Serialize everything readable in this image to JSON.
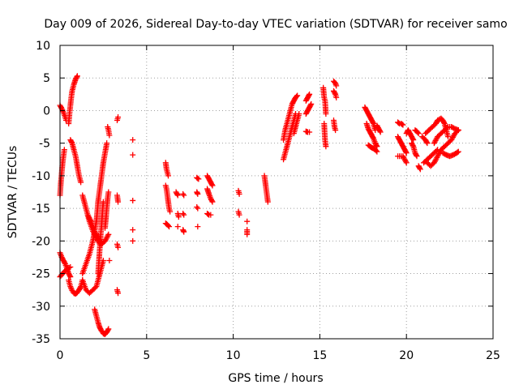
{
  "chart_data": {
    "type": "scatter",
    "title": "Day 009 of 2026, Sidereal Day-to-day VTEC variation (SDTVAR) for receiver samo",
    "xlabel": "GPS time / hours",
    "ylabel": "SDTVAR / TECUs",
    "xlim": [
      0,
      25
    ],
    "ylim": [
      -35,
      10
    ],
    "xticks": [
      0,
      5,
      10,
      15,
      20,
      25
    ],
    "yticks": [
      10,
      5,
      0,
      -5,
      -10,
      -15,
      -20,
      -25,
      -30,
      -35
    ],
    "grid": true,
    "marker": "+",
    "color": "#ff0000",
    "traces": [
      [
        [
          0.0,
          -13.0
        ],
        [
          0.05,
          -11.0
        ],
        [
          0.1,
          -9.5
        ],
        [
          0.15,
          -8.0
        ],
        [
          0.2,
          -7.0
        ],
        [
          0.25,
          -6.0
        ]
      ],
      [
        [
          0.0,
          0.8
        ],
        [
          0.1,
          0.3
        ],
        [
          0.2,
          -0.3
        ],
        [
          0.3,
          -1.0
        ],
        [
          0.35,
          -1.5
        ]
      ],
      [
        [
          0.5,
          -2.0
        ],
        [
          0.55,
          -0.5
        ],
        [
          0.6,
          0.8
        ],
        [
          0.65,
          2.0
        ],
        [
          0.7,
          3.0
        ],
        [
          0.8,
          4.0
        ],
        [
          0.9,
          4.8
        ],
        [
          1.0,
          5.3
        ]
      ],
      [
        [
          0.0,
          -21.8
        ],
        [
          0.1,
          -22.5
        ],
        [
          0.2,
          -23.0
        ],
        [
          0.3,
          -23.5
        ],
        [
          0.4,
          -24.2
        ],
        [
          0.5,
          -25.0
        ],
        [
          0.6,
          -25.5
        ]
      ],
      [
        [
          0.0,
          -25.5
        ],
        [
          0.15,
          -25.0
        ],
        [
          0.3,
          -24.6
        ],
        [
          0.45,
          -24.2
        ],
        [
          0.6,
          -24.0
        ]
      ],
      [
        [
          0.5,
          -26.0
        ],
        [
          0.6,
          -27.0
        ],
        [
          0.7,
          -27.6
        ],
        [
          0.8,
          -28.0
        ],
        [
          0.9,
          -28.1
        ],
        [
          1.0,
          -27.9
        ],
        [
          1.1,
          -27.5
        ],
        [
          1.2,
          -27.0
        ],
        [
          1.3,
          -26.0
        ]
      ],
      [
        [
          0.6,
          -4.5
        ],
        [
          0.7,
          -5.0
        ],
        [
          0.8,
          -6.0
        ],
        [
          0.9,
          -7.0
        ],
        [
          1.0,
          -8.5
        ],
        [
          1.1,
          -10.0
        ],
        [
          1.2,
          -11.0
        ]
      ],
      [
        [
          1.3,
          -26.0
        ],
        [
          1.5,
          -27.5
        ],
        [
          1.7,
          -28.0
        ],
        [
          1.9,
          -27.5
        ],
        [
          2.1,
          -27.0
        ],
        [
          2.2,
          -26.0
        ],
        [
          2.3,
          -25.0
        ],
        [
          2.4,
          -24.0
        ],
        [
          2.5,
          -23.0
        ]
      ],
      [
        [
          1.3,
          -25.0
        ],
        [
          1.5,
          -23.5
        ],
        [
          1.7,
          -22.0
        ],
        [
          1.9,
          -20.0
        ],
        [
          2.1,
          -17.0
        ],
        [
          2.2,
          -14.0
        ],
        [
          2.3,
          -12.0
        ],
        [
          2.4,
          -10.0
        ],
        [
          2.5,
          -8.0
        ],
        [
          2.6,
          -6.5
        ],
        [
          2.7,
          -5.0
        ]
      ],
      [
        [
          1.3,
          -13.0
        ],
        [
          1.5,
          -15.0
        ],
        [
          1.7,
          -17.0
        ],
        [
          1.9,
          -18.5
        ],
        [
          2.1,
          -19.5
        ],
        [
          2.3,
          -20.5
        ]
      ],
      [
        [
          1.6,
          -16.0
        ],
        [
          1.8,
          -17.0
        ],
        [
          2.0,
          -18.5
        ],
        [
          2.2,
          -19.5
        ],
        [
          2.4,
          -20.5
        ],
        [
          2.6,
          -20.0
        ],
        [
          2.8,
          -19.0
        ]
      ],
      [
        [
          2.0,
          -30.5
        ],
        [
          2.1,
          -31.5
        ],
        [
          2.2,
          -32.5
        ],
        [
          2.3,
          -33.3
        ],
        [
          2.4,
          -33.8
        ],
        [
          2.5,
          -34.2
        ],
        [
          2.6,
          -34.3
        ],
        [
          2.7,
          -34.0
        ],
        [
          2.8,
          -33.5
        ]
      ],
      [
        [
          2.2,
          -25.0
        ],
        [
          2.25,
          -23.0
        ],
        [
          2.3,
          -21.0
        ],
        [
          2.35,
          -19.0
        ],
        [
          2.4,
          -17.5
        ],
        [
          2.45,
          -15.5
        ],
        [
          2.5,
          -14.0
        ]
      ],
      [
        [
          2.6,
          -18.0
        ],
        [
          2.65,
          -16.5
        ],
        [
          2.7,
          -15.0
        ],
        [
          2.75,
          -13.5
        ],
        [
          2.8,
          -12.5
        ]
      ],
      [
        [
          2.75,
          -2.5
        ],
        [
          2.8,
          -3.0
        ],
        [
          2.85,
          -3.8
        ]
      ],
      [
        [
          2.85,
          -23.0
        ]
      ],
      [
        [
          3.3,
          -1.5
        ],
        [
          3.35,
          -1.0
        ]
      ],
      [
        [
          3.3,
          -13.0
        ],
        [
          3.35,
          -14.0
        ]
      ],
      [
        [
          3.3,
          -20.5
        ],
        [
          3.35,
          -21.0
        ]
      ],
      [
        [
          3.3,
          -27.5
        ],
        [
          3.35,
          -28.0
        ]
      ],
      [
        [
          4.2,
          -4.5
        ]
      ],
      [
        [
          4.2,
          -6.8
        ]
      ],
      [
        [
          4.2,
          -13.8
        ]
      ],
      [
        [
          4.2,
          -18.3
        ]
      ],
      [
        [
          4.2,
          -20.0
        ]
      ],
      [
        [
          6.1,
          -8.0
        ],
        [
          6.15,
          -9.0
        ],
        [
          6.2,
          -9.5
        ],
        [
          6.25,
          -10.0
        ]
      ],
      [
        [
          6.1,
          -11.5
        ],
        [
          6.15,
          -12.0
        ],
        [
          6.2,
          -13.0
        ],
        [
          6.25,
          -14.0
        ],
        [
          6.3,
          -15.0
        ],
        [
          6.35,
          -15.5
        ]
      ],
      [
        [
          6.1,
          -17.3
        ],
        [
          6.2,
          -17.5
        ],
        [
          6.3,
          -17.8
        ]
      ],
      [
        [
          6.7,
          -12.5
        ],
        [
          6.8,
          -13.0
        ]
      ],
      [
        [
          6.8,
          -15.8
        ],
        [
          6.85,
          -16.3
        ]
      ],
      [
        [
          6.8,
          -17.8
        ]
      ],
      [
        [
          7.1,
          -12.8
        ],
        [
          7.15,
          -13.0
        ]
      ],
      [
        [
          7.1,
          -15.8
        ],
        [
          7.15,
          -16.0
        ]
      ],
      [
        [
          7.1,
          -18.3
        ],
        [
          7.15,
          -18.6
        ]
      ],
      [
        [
          7.9,
          -10.3
        ],
        [
          8.0,
          -10.5
        ]
      ],
      [
        [
          7.9,
          -12.5
        ],
        [
          7.95,
          -12.8
        ]
      ],
      [
        [
          7.9,
          -14.8
        ],
        [
          7.95,
          -15.0
        ]
      ],
      [
        [
          7.95,
          -17.8
        ]
      ],
      [
        [
          8.5,
          -10.0
        ],
        [
          8.6,
          -10.5
        ],
        [
          8.7,
          -11.0
        ],
        [
          8.8,
          -11.5
        ]
      ],
      [
        [
          8.5,
          -12.0
        ],
        [
          8.6,
          -12.8
        ],
        [
          8.7,
          -13.5
        ],
        [
          8.8,
          -14.0
        ]
      ],
      [
        [
          8.5,
          -15.8
        ],
        [
          8.6,
          -16.0
        ],
        [
          8.7,
          -16.0
        ]
      ],
      [
        [
          10.3,
          -12.3
        ],
        [
          10.35,
          -12.8
        ]
      ],
      [
        [
          10.3,
          -15.5
        ],
        [
          10.35,
          -16.0
        ]
      ],
      [
        [
          10.8,
          -17.0
        ]
      ],
      [
        [
          10.8,
          -18.3
        ],
        [
          10.8,
          -19.0
        ]
      ],
      [
        [
          11.8,
          -10.0
        ],
        [
          11.85,
          -11.0
        ],
        [
          11.9,
          -12.0
        ],
        [
          11.95,
          -13.0
        ],
        [
          12.0,
          -14.0
        ]
      ],
      [
        [
          12.9,
          -7.5
        ],
        [
          13.0,
          -6.5
        ],
        [
          13.1,
          -5.5
        ],
        [
          13.2,
          -4.5
        ],
        [
          13.3,
          -3.5
        ],
        [
          13.4,
          -2.5
        ],
        [
          13.5,
          -1.5
        ],
        [
          13.6,
          -0.5
        ]
      ],
      [
        [
          12.9,
          -4.5
        ],
        [
          13.0,
          -3.0
        ],
        [
          13.1,
          -2.0
        ],
        [
          13.2,
          -1.0
        ],
        [
          13.3,
          0.0
        ],
        [
          13.4,
          1.0
        ],
        [
          13.5,
          1.5
        ],
        [
          13.6,
          2.0
        ],
        [
          13.7,
          2.3
        ]
      ],
      [
        [
          13.5,
          -3.5
        ],
        [
          13.6,
          -2.5
        ],
        [
          13.7,
          -1.5
        ],
        [
          13.8,
          -0.5
        ]
      ],
      [
        [
          14.2,
          -3.2
        ],
        [
          14.3,
          -3.3
        ],
        [
          14.4,
          -3.3
        ]
      ],
      [
        [
          14.2,
          -0.5
        ],
        [
          14.3,
          0.0
        ],
        [
          14.4,
          0.5
        ],
        [
          14.5,
          1.0
        ]
      ],
      [
        [
          14.2,
          1.5
        ],
        [
          14.3,
          2.0
        ],
        [
          14.4,
          2.5
        ]
      ],
      [
        [
          15.2,
          3.5
        ],
        [
          15.25,
          2.0
        ],
        [
          15.3,
          1.5
        ],
        [
          15.35,
          -0.5
        ]
      ],
      [
        [
          15.25,
          -2.0
        ],
        [
          15.3,
          -4.5
        ],
        [
          15.35,
          -5.5
        ]
      ],
      [
        [
          15.8,
          4.5
        ],
        [
          15.9,
          4.2
        ],
        [
          15.95,
          3.8
        ]
      ],
      [
        [
          15.8,
          3.0
        ],
        [
          15.9,
          2.5
        ],
        [
          15.95,
          2.0
        ]
      ],
      [
        [
          15.8,
          -1.5
        ],
        [
          15.85,
          -2.5
        ],
        [
          15.9,
          -3.0
        ]
      ],
      [
        [
          17.6,
          0.5
        ],
        [
          17.7,
          0.0
        ],
        [
          17.8,
          -0.5
        ],
        [
          17.9,
          -1.0
        ],
        [
          18.0,
          -1.5
        ],
        [
          18.1,
          -2.0
        ],
        [
          18.2,
          -3.0
        ]
      ],
      [
        [
          17.7,
          -2.0
        ],
        [
          17.8,
          -2.8
        ],
        [
          17.9,
          -3.3
        ],
        [
          18.0,
          -3.8
        ],
        [
          18.1,
          -4.3
        ],
        [
          18.2,
          -5.0
        ],
        [
          18.3,
          -5.5
        ]
      ],
      [
        [
          17.8,
          -5.3
        ],
        [
          17.9,
          -5.5
        ],
        [
          18.0,
          -5.7
        ],
        [
          18.1,
          -5.8
        ],
        [
          18.2,
          -6.0
        ],
        [
          18.3,
          -6.3
        ]
      ],
      [
        [
          18.3,
          -2.3
        ],
        [
          18.4,
          -2.8
        ],
        [
          18.5,
          -3.3
        ]
      ],
      [
        [
          19.5,
          -1.8
        ],
        [
          19.6,
          -2.0
        ],
        [
          19.7,
          -2.0
        ],
        [
          19.8,
          -2.2
        ]
      ],
      [
        [
          19.5,
          -4.0
        ],
        [
          19.6,
          -4.5
        ],
        [
          19.7,
          -5.0
        ],
        [
          19.8,
          -5.5
        ],
        [
          19.9,
          -6.0
        ],
        [
          20.0,
          -6.5
        ]
      ],
      [
        [
          19.5,
          -7.0
        ],
        [
          19.6,
          -7.0
        ],
        [
          19.8,
          -7.0
        ],
        [
          20.0,
          -8.0
        ]
      ],
      [
        [
          20.0,
          -3.5
        ],
        [
          20.1,
          -3.0
        ],
        [
          20.2,
          -3.5
        ],
        [
          20.3,
          -4.0
        ],
        [
          20.4,
          -4.5
        ]
      ],
      [
        [
          20.3,
          -5.0
        ],
        [
          20.4,
          -5.5
        ],
        [
          20.5,
          -6.5
        ],
        [
          20.6,
          -7.0
        ]
      ],
      [
        [
          20.5,
          -3.0
        ],
        [
          20.6,
          -3.2
        ],
        [
          20.7,
          -3.5
        ]
      ],
      [
        [
          20.7,
          -8.5
        ],
        [
          20.8,
          -9.0
        ]
      ],
      [
        [
          20.9,
          -4.0
        ],
        [
          21.1,
          -4.5
        ],
        [
          21.2,
          -5.0
        ]
      ],
      [
        [
          21.0,
          -8.0
        ],
        [
          21.2,
          -7.5
        ],
        [
          21.4,
          -7.0
        ],
        [
          21.6,
          -6.5
        ],
        [
          21.8,
          -6.0
        ]
      ],
      [
        [
          21.1,
          -3.5
        ],
        [
          21.3,
          -3.0
        ],
        [
          21.5,
          -2.5
        ],
        [
          21.7,
          -2.0
        ],
        [
          21.8,
          -1.5
        ],
        [
          22.0,
          -1.2
        ],
        [
          22.1,
          -1.5
        ],
        [
          22.2,
          -2.0
        ],
        [
          22.3,
          -3.0
        ],
        [
          22.4,
          -4.0
        ]
      ],
      [
        [
          21.2,
          -8.0
        ],
        [
          21.4,
          -8.5
        ],
        [
          21.6,
          -8.0
        ],
        [
          21.8,
          -7.0
        ],
        [
          22.0,
          -6.0
        ],
        [
          22.2,
          -5.5
        ],
        [
          22.4,
          -5.0
        ],
        [
          22.6,
          -4.5
        ],
        [
          22.8,
          -3.5
        ],
        [
          23.0,
          -3.0
        ]
      ],
      [
        [
          21.6,
          -5.0
        ],
        [
          21.8,
          -4.0
        ],
        [
          22.0,
          -3.5
        ],
        [
          22.2,
          -3.0
        ],
        [
          22.4,
          -2.5
        ],
        [
          22.6,
          -2.5
        ],
        [
          22.8,
          -2.8
        ],
        [
          23.0,
          -3.0
        ]
      ],
      [
        [
          22.1,
          -6.5
        ],
        [
          22.3,
          -6.8
        ],
        [
          22.5,
          -7.0
        ],
        [
          22.7,
          -6.8
        ],
        [
          22.9,
          -6.5
        ],
        [
          23.0,
          -6.3
        ]
      ]
    ]
  }
}
